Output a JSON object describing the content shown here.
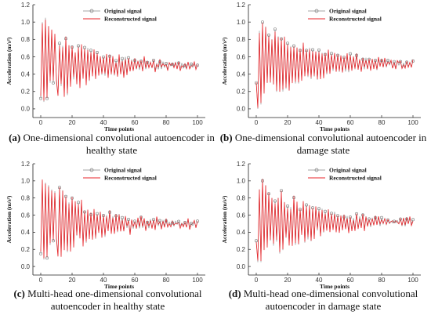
{
  "chart_data": [
    {
      "id": "a",
      "type": "line",
      "caption_label": "(a)",
      "caption_text": " One-dimensional convolutional autoencoder in healthy state",
      "xlabel": "Time points",
      "ylabel": "Acceleration (m/s²)",
      "xlim": [
        -5,
        105
      ],
      "ylim": [
        -0.1,
        1.2
      ],
      "xticks": [
        "0",
        "20",
        "40",
        "60",
        "80",
        "100"
      ],
      "yticks": [
        "0.0",
        "0.2",
        "0.4",
        "0.6",
        "0.8",
        "1.0",
        "1.2"
      ],
      "legend_position": "top-center",
      "series": [
        {
          "name": "Original signal",
          "color": "#888888",
          "marker": "circle",
          "seed": 11,
          "x": [],
          "values": []
        },
        {
          "name": "Reconstructed signal",
          "color": "#e8262b",
          "marker": "none",
          "seed": 11,
          "x": [],
          "values": []
        }
      ],
      "shape": {
        "peaks": [
          1.0,
          0.08,
          1.05,
          0.12,
          0.95,
          0.3,
          0.9,
          0.3,
          0.85,
          0.35
        ],
        "settle": 0.5,
        "decay": 0.035,
        "start": 0.12
      }
    },
    {
      "id": "b",
      "type": "line",
      "caption_label": "(b)",
      "caption_text": " One-dimensional convolutional autoencoder in damage state",
      "xlabel": "Time points",
      "ylabel": "Acceleration (m/s²)",
      "xlim": [
        -5,
        105
      ],
      "ylim": [
        -0.1,
        1.2
      ],
      "xticks": [
        "0",
        "20",
        "40",
        "60",
        "80",
        "100"
      ],
      "yticks": [
        "0.0",
        "0.2",
        "0.4",
        "0.6",
        "0.8",
        "1.0",
        "1.2"
      ],
      "legend_position": "top-center",
      "series": [
        {
          "name": "Original signal",
          "color": "#888888",
          "marker": "circle",
          "seed": 23,
          "x": [],
          "values": []
        },
        {
          "name": "Reconstructed signal",
          "color": "#e8262b",
          "marker": "none",
          "seed": 23,
          "x": [],
          "values": []
        }
      ],
      "shape": {
        "peaks": [
          0.0,
          0.9,
          0.05,
          1.0,
          0.2,
          0.95,
          0.3,
          0.85,
          0.3,
          0.8
        ],
        "settle": 0.52,
        "decay": 0.03,
        "start": 0.3
      }
    },
    {
      "id": "c",
      "type": "line",
      "caption_label": "(c)",
      "caption_text": " Multi-head one-dimensional convolutional autoencoder in healthy state",
      "xlabel": "Time points",
      "ylabel": "Acceleration (m/s²)",
      "xlim": [
        -5,
        105
      ],
      "ylim": [
        -0.1,
        1.2
      ],
      "xticks": [
        "0",
        "20",
        "40",
        "60",
        "80",
        "100"
      ],
      "yticks": [
        "0.0",
        "0.2",
        "0.4",
        "0.6",
        "0.8",
        "1.0",
        "1.2"
      ],
      "legend_position": "top-center",
      "series": [
        {
          "name": "Original signal",
          "color": "#888888",
          "marker": "circle",
          "seed": 37,
          "x": [],
          "values": []
        },
        {
          "name": "Reconstructed signal",
          "color": "#e8262b",
          "marker": "none",
          "seed": 37,
          "x": [],
          "values": []
        }
      ],
      "shape": {
        "peaks": [
          1.0,
          0.08,
          0.98,
          0.1,
          0.95,
          0.25,
          0.9,
          0.3,
          0.88,
          0.35
        ],
        "settle": 0.5,
        "decay": 0.035,
        "start": 0.15
      }
    },
    {
      "id": "d",
      "type": "line",
      "caption_label": "(d)",
      "caption_text": " Multi-head one-dimensional convolutional autoencoder in damage state",
      "xlabel": "Time points",
      "ylabel": "Acceleration (m/s²)",
      "xlim": [
        -5,
        105
      ],
      "ylim": [
        -0.1,
        1.2
      ],
      "xticks": [
        "0",
        "20",
        "40",
        "60",
        "80",
        "100"
      ],
      "yticks": [
        "0.0",
        "0.2",
        "0.4",
        "0.6",
        "0.8",
        "1.0",
        "1.2"
      ],
      "legend_position": "top-center",
      "series": [
        {
          "name": "Original signal",
          "color": "#888888",
          "marker": "circle",
          "seed": 51,
          "x": [],
          "values": []
        },
        {
          "name": "Reconstructed signal",
          "color": "#e8262b",
          "marker": "none",
          "seed": 51,
          "x": [],
          "values": []
        }
      ],
      "shape": {
        "peaks": [
          0.05,
          0.9,
          0.05,
          1.0,
          0.2,
          0.95,
          0.25,
          0.85,
          0.3,
          0.8
        ],
        "settle": 0.52,
        "decay": 0.03,
        "start": 0.3
      }
    }
  ]
}
